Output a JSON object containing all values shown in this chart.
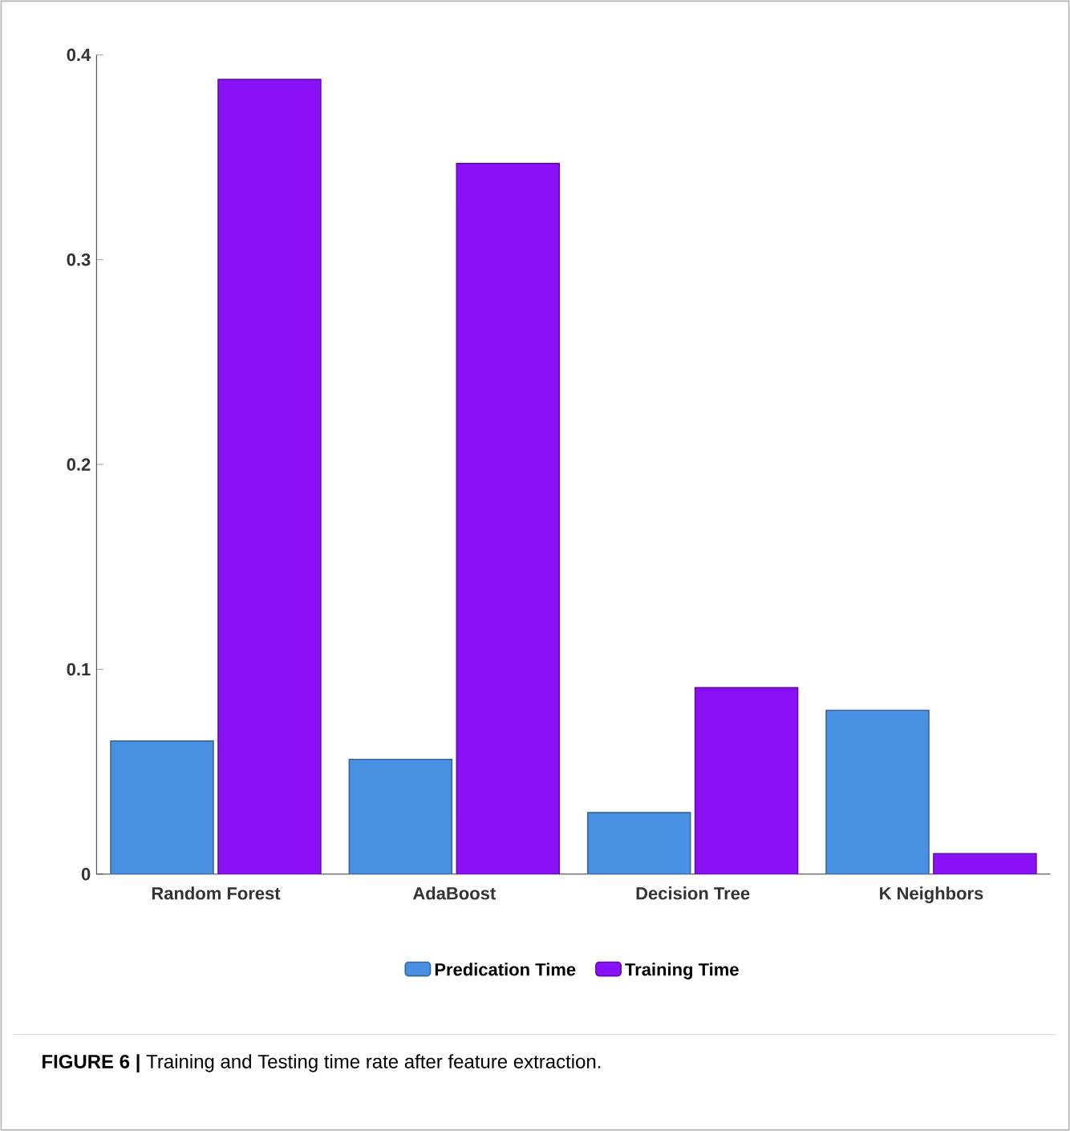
{
  "chart_data": {
    "type": "bar",
    "categories": [
      "Random Forest",
      "AdaBoost",
      "Decision Tree",
      "K Neighbors"
    ],
    "series": [
      {
        "name": "Predication Time",
        "color": "#4a90e2",
        "values": [
          0.065,
          0.056,
          0.03,
          0.08
        ]
      },
      {
        "name": "Training Time",
        "color": "#8a10f5",
        "values": [
          0.388,
          0.347,
          0.091,
          0.01
        ]
      }
    ],
    "ylim": [
      0,
      0.4
    ],
    "yticks": [
      0,
      0.1,
      0.2,
      0.3,
      0.4
    ],
    "legend": "bottom",
    "annotations": [
      "**FIGURE 6 |** Training and Testing time rate after feature extraction."
    ]
  }
}
